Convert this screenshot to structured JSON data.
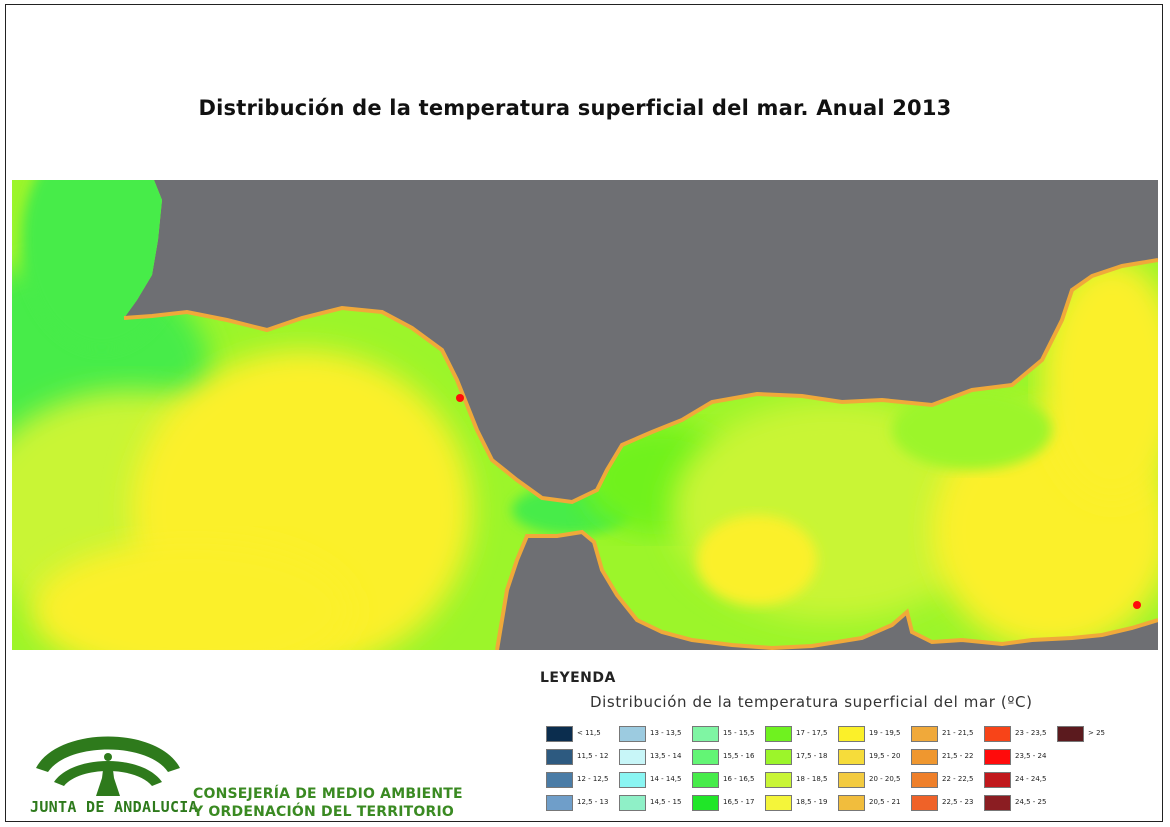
{
  "title": "Distribución de la temperatura superficial del mar. Anual 2013",
  "legend": {
    "heading": "LEYENDA",
    "subtitle": "Distribución de la temperatura superficial del mar  (ºC)",
    "classes": [
      {
        "label": "< 11,5",
        "color": "#0b2d4e"
      },
      {
        "label": "11,5 - 12",
        "color": "#2d5a80"
      },
      {
        "label": "12 - 12,5",
        "color": "#4a7ca6"
      },
      {
        "label": "12,5 - 13",
        "color": "#6f9ec9"
      },
      {
        "label": "13 - 13,5",
        "color": "#9ccbe0"
      },
      {
        "label": "13,5 - 14",
        "color": "#c8f6f8"
      },
      {
        "label": "14 - 14,5",
        "color": "#8af5f2"
      },
      {
        "label": "14,5 - 15",
        "color": "#8ff0c7"
      },
      {
        "label": "15 - 15,5",
        "color": "#7ff5a3"
      },
      {
        "label": "15,5 - 16",
        "color": "#63f575"
      },
      {
        "label": "16 - 16,5",
        "color": "#47ec4a"
      },
      {
        "label": "16,5 - 17",
        "color": "#20e628"
      },
      {
        "label": "17 - 17,5",
        "color": "#6ff21f"
      },
      {
        "label": "17,5 - 18",
        "color": "#9cf52a"
      },
      {
        "label": "18 - 18,5",
        "color": "#c9f536"
      },
      {
        "label": "18,5 - 19",
        "color": "#f4f53a"
      },
      {
        "label": "19 - 19,5",
        "color": "#fbf029"
      },
      {
        "label": "19,5 - 20",
        "color": "#f6dc3a"
      },
      {
        "label": "20 - 20,5",
        "color": "#f3cb40"
      },
      {
        "label": "20,5 - 21",
        "color": "#f1bd3d"
      },
      {
        "label": "21 - 21,5",
        "color": "#f0a93a"
      },
      {
        "label": "21,5 - 22",
        "color": "#ef972f"
      },
      {
        "label": "22 - 22,5",
        "color": "#ee7f2a"
      },
      {
        "label": "22,5 - 23",
        "color": "#ef6228"
      },
      {
        "label": "23 - 23,5",
        "color": "#f84418"
      },
      {
        "label": "23,5 - 24",
        "color": "#ff0b0b"
      },
      {
        "label": "24 - 24,5",
        "color": "#c1181c"
      },
      {
        "label": "24,5 - 25",
        "color": "#8b1d22"
      },
      {
        "label": "> 25",
        "color": "#5b1a1e"
      }
    ]
  },
  "branding": {
    "logo_text": "JUNTA DE ANDALUCIA",
    "org_line_1": "CONSEJERÍA DE MEDIO AMBIENTE",
    "org_line_2": "Y ORDENACIÓN DEL TERRITORIO",
    "logo_color": "#2e7a1c"
  },
  "map": {
    "land_color": "#6e6f73",
    "sea_colors": {
      "cold": "#47ec4a",
      "cool": "#6ff21f",
      "mild": "#9cf52a",
      "warm": "#c9f536",
      "hot": "#fbf029",
      "coast": "#f0a93a",
      "hotspot": "#ff0b0b"
    }
  }
}
